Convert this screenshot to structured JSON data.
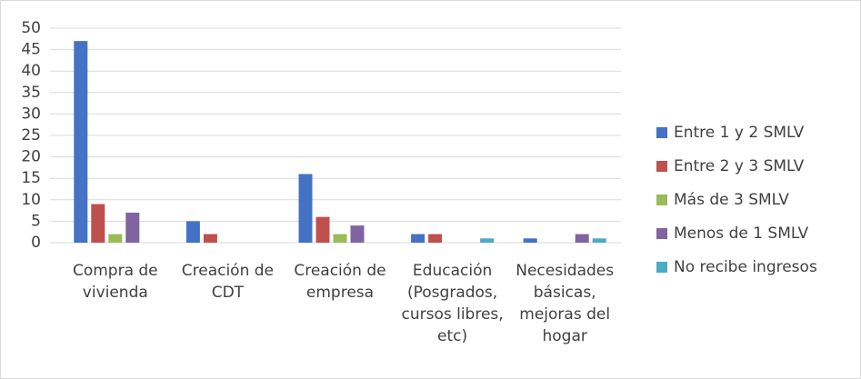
{
  "chart_data": {
    "type": "bar",
    "categories": [
      "Compra de vivienda",
      "Creación de CDT",
      "Creación de empresa",
      "Educación (Posgrados, cursos libres, etc)",
      "Necesidades básicas, mejoras del hogar"
    ],
    "series": [
      {
        "name": "Entre 1 y 2 SMLV",
        "color": "#4472c4",
        "values": [
          47,
          5,
          16,
          2,
          1
        ]
      },
      {
        "name": "Entre 2 y 3 SMLV",
        "color": "#c0504d",
        "values": [
          9,
          2,
          6,
          2,
          0
        ]
      },
      {
        "name": "Más de 3 SMLV",
        "color": "#9bbb59",
        "values": [
          2,
          0,
          2,
          0,
          0
        ]
      },
      {
        "name": "Menos de 1 SMLV",
        "color": "#8064a2",
        "values": [
          7,
          0,
          4,
          0,
          2
        ]
      },
      {
        "name": "No recibe ingresos",
        "color": "#4bacc6",
        "values": [
          0,
          0,
          0,
          1,
          1
        ]
      }
    ],
    "ylim": [
      0,
      50
    ],
    "yticks": [
      0,
      5,
      10,
      15,
      20,
      25,
      30,
      35,
      40,
      45,
      50
    ],
    "grid": true,
    "legend": "right"
  }
}
